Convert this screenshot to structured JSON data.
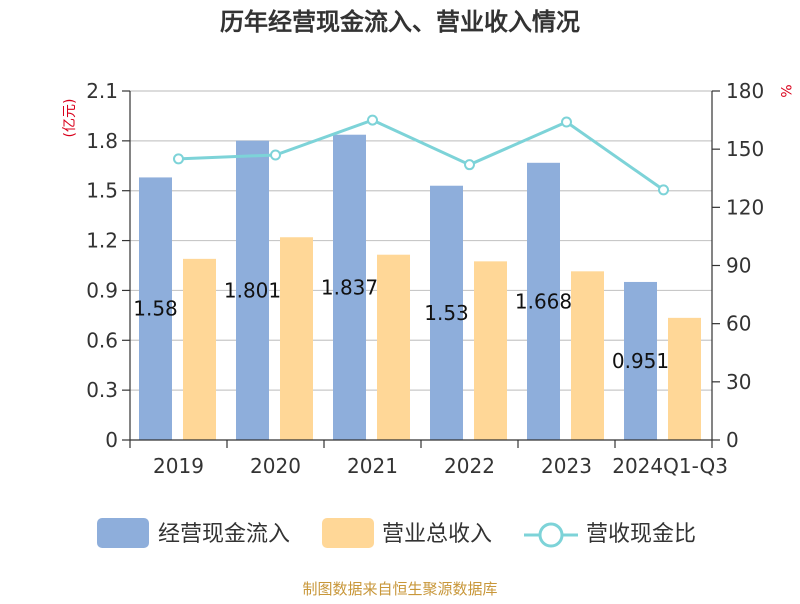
{
  "chart_data": {
    "type": "bar",
    "title": "历年经营现金流入、营业收入情况",
    "categories": [
      "2019",
      "2020",
      "2021",
      "2022",
      "2023",
      "2024Q1-Q3"
    ],
    "series": [
      {
        "name": "经营现金流入",
        "type": "bar",
        "axis": "left",
        "color": "#8eaedb",
        "values": [
          1.58,
          1.801,
          1.837,
          1.53,
          1.668,
          0.951
        ]
      },
      {
        "name": "营业总收入",
        "type": "bar",
        "axis": "left",
        "color": "#ffd797",
        "values": [
          1.09,
          1.22,
          1.115,
          1.075,
          1.015,
          0.735
        ]
      },
      {
        "name": "营收现金比",
        "type": "line",
        "axis": "right",
        "color": "#7dd3d8",
        "values": [
          145,
          147,
          165,
          142,
          164,
          129
        ]
      }
    ],
    "data_labels": [
      "1.58",
      "1.801",
      "1.837",
      "1.53",
      "1.668",
      "0.951"
    ],
    "y_left": {
      "unit": "(亿元)",
      "ylim": [
        0,
        2.1
      ],
      "ticks": [
        "0",
        "0.3",
        "0.6",
        "0.9",
        "1.2",
        "1.5",
        "1.8",
        "2.1"
      ]
    },
    "y_right": {
      "unit": "%",
      "ylim": [
        0,
        180
      ],
      "ticks": [
        "0",
        "30",
        "60",
        "90",
        "120",
        "150",
        "180"
      ]
    },
    "grid": true,
    "legend_position": "bottom"
  },
  "footer": "制图数据来自恒生聚源数据库"
}
